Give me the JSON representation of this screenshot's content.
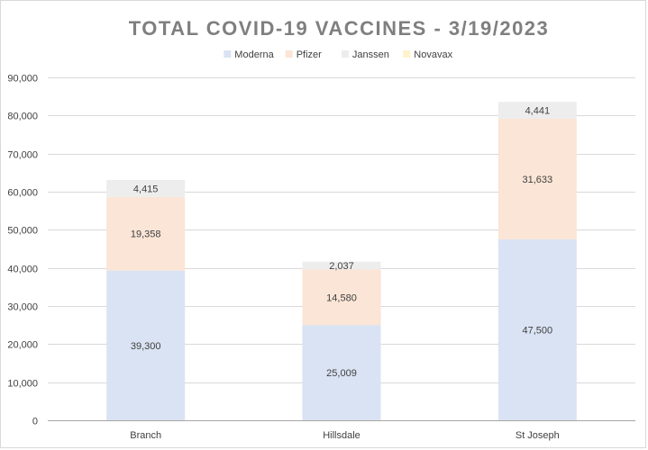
{
  "chart_data": {
    "type": "bar",
    "stacked": true,
    "title": "TOTAL COVID-19 VACCINES - 3/19/2023",
    "xlabel": "",
    "ylabel": "",
    "categories": [
      "Branch",
      "Hillsdale",
      "St Joseph"
    ],
    "series": [
      {
        "name": "Moderna",
        "color": "#dae3f3",
        "values": [
          39300,
          25009,
          47500
        ]
      },
      {
        "name": "Pfizer",
        "color": "#fbe5d6",
        "values": [
          19358,
          14580,
          31633
        ]
      },
      {
        "name": "Janssen",
        "color": "#ededed",
        "values": [
          4415,
          2037,
          4441
        ]
      },
      {
        "name": "Novavax",
        "color": "#fff2cc",
        "values": [
          0,
          0,
          0
        ]
      }
    ],
    "data_labels": [
      [
        "39,300",
        "19,358",
        "4,415"
      ],
      [
        "25,009",
        "14,580",
        "2,037"
      ],
      [
        "47,500",
        "31,633",
        "4,441"
      ]
    ],
    "ylim": [
      0,
      90000
    ],
    "y_ticks": [
      0,
      10000,
      20000,
      30000,
      40000,
      50000,
      60000,
      70000,
      80000,
      90000
    ],
    "y_tick_labels": [
      "0",
      "10,000",
      "20,000",
      "30,000",
      "40,000",
      "50,000",
      "60,000",
      "70,000",
      "80,000",
      "90,000"
    ],
    "grid": true,
    "legend_position": "top"
  }
}
